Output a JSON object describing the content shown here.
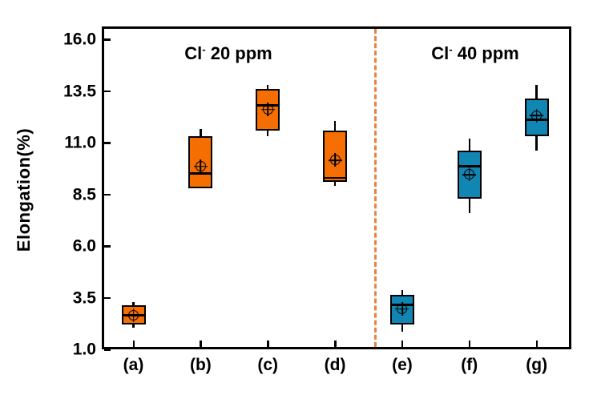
{
  "chart_data": {
    "type": "boxplot",
    "title": "",
    "xlabel": "",
    "ylabel": "Elongation(%)",
    "ylim": [
      1.0,
      16.6
    ],
    "ytick_values": [
      1.0,
      3.5,
      6.0,
      8.5,
      11.0,
      13.5,
      16.0
    ],
    "ytick_labels": [
      "1.0",
      "3.5",
      "6.0",
      "8.5",
      "11.0",
      "13.5",
      "16.0"
    ],
    "categories": [
      "(a)",
      "(b)",
      "(c)",
      "(d)",
      "(e)",
      "(f)",
      "(g)"
    ],
    "grid": false,
    "legend_position": "none",
    "groups": [
      {
        "name": "Cl- 20 ppm",
        "label": {
          "element": "Cl",
          "sup": "-",
          "rest": " 20 ppm"
        },
        "color": "#F56E02",
        "members": [
          "(a)",
          "(b)",
          "(c)",
          "(d)"
        ]
      },
      {
        "name": "Cl- 40 ppm",
        "label": {
          "element": "Cl",
          "sup": "-",
          "rest": " 40 ppm"
        },
        "color": "#1186B2",
        "members": [
          "(e)",
          "(f)",
          "(g)"
        ]
      }
    ],
    "divider": {
      "between": [
        "(d)",
        "(e)"
      ],
      "line_style": "dashed",
      "color": "#E8823F"
    },
    "series": [
      {
        "category": "(a)",
        "group": "Cl- 20 ppm",
        "whisker_low": 2.05,
        "q1": 2.2,
        "median": 2.65,
        "mean": 2.65,
        "q3": 3.15,
        "whisker_high": 3.3
      },
      {
        "category": "(b)",
        "group": "Cl- 20 ppm",
        "whisker_low": 8.8,
        "q1": 8.8,
        "median": 9.5,
        "mean": 9.85,
        "q3": 11.3,
        "whisker_high": 11.65
      },
      {
        "category": "(c)",
        "group": "Cl- 20 ppm",
        "whisker_low": 11.3,
        "q1": 11.6,
        "median": 12.8,
        "mean": 12.6,
        "q3": 13.6,
        "whisker_high": 13.8
      },
      {
        "category": "(d)",
        "group": "Cl- 20 ppm",
        "whisker_low": 8.9,
        "q1": 9.1,
        "median": 9.3,
        "mean": 10.15,
        "q3": 11.6,
        "whisker_high": 12.05
      },
      {
        "category": "(e)",
        "group": "Cl- 40 ppm",
        "whisker_low": 1.85,
        "q1": 2.2,
        "median": 3.15,
        "mean": 2.95,
        "q3": 3.65,
        "whisker_high": 3.85
      },
      {
        "category": "(f)",
        "group": "Cl- 40 ppm",
        "whisker_low": 7.6,
        "q1": 8.3,
        "median": 9.85,
        "mean": 9.45,
        "q3": 10.6,
        "whisker_high": 11.2
      },
      {
        "category": "(g)",
        "group": "Cl- 40 ppm",
        "whisker_low": 10.6,
        "q1": 11.3,
        "median": 12.1,
        "mean": 12.3,
        "q3": 13.15,
        "whisker_high": 13.8
      }
    ]
  }
}
